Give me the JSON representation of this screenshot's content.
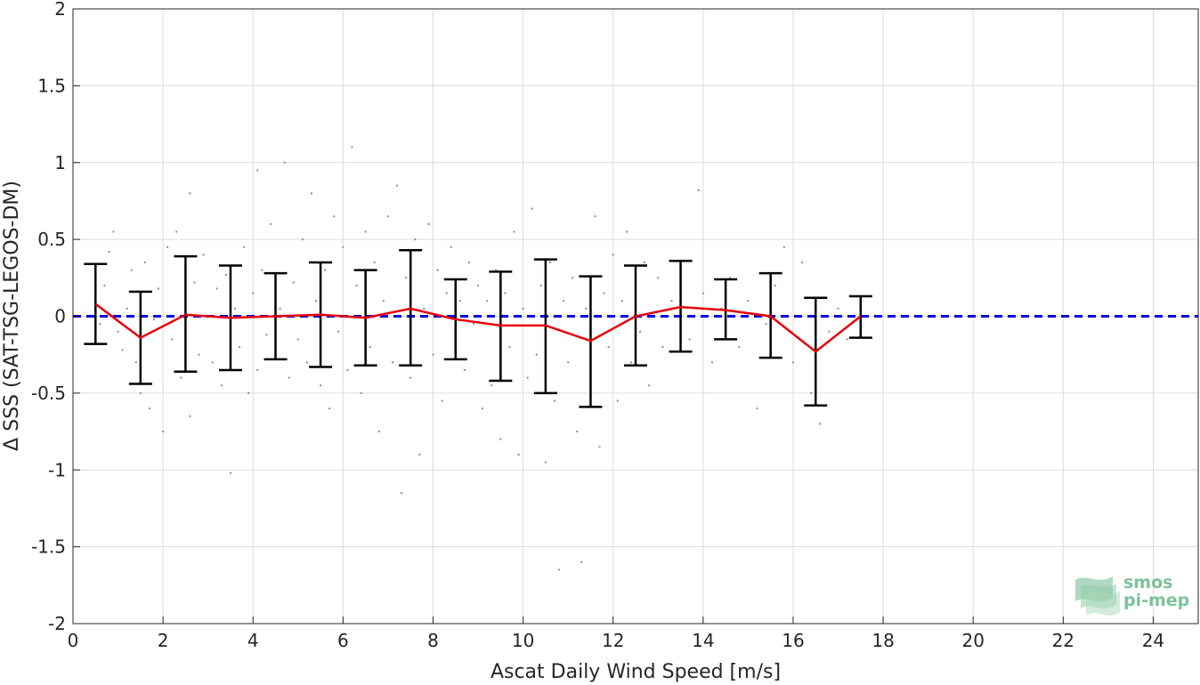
{
  "chart_data": {
    "type": "scatter",
    "title": "",
    "xlabel": "Ascat Daily Wind Speed [m/s]",
    "ylabel": "Δ SSS (SAT-TSG-LEGOS-DM)",
    "xlim": [
      0,
      25
    ],
    "ylim": [
      -2,
      2
    ],
    "xticks": [
      0,
      2,
      4,
      6,
      8,
      10,
      12,
      14,
      16,
      18,
      20,
      22,
      24
    ],
    "yticks": [
      -2,
      -1.5,
      -1,
      -0.5,
      0,
      0.5,
      1,
      1.5,
      2
    ],
    "grid": true,
    "reference_line": {
      "y": 0,
      "color": "#0000e0",
      "style": "dashed"
    },
    "binned_mean": {
      "color": "#e8000b",
      "x": [
        0.5,
        1.5,
        2.5,
        3.5,
        4.5,
        5.5,
        6.5,
        7.5,
        8.5,
        9.5,
        10.5,
        11.5,
        12.5,
        13.5,
        14.5,
        15.5,
        16.5,
        17.5
      ],
      "y": [
        0.08,
        -0.14,
        0.01,
        -0.01,
        0.0,
        0.01,
        -0.01,
        0.05,
        -0.02,
        -0.06,
        -0.06,
        -0.16,
        0.0,
        0.06,
        0.04,
        0.0,
        -0.23,
        0.0
      ]
    },
    "error_bars": {
      "color": "#000000",
      "x": [
        0.5,
        1.5,
        2.5,
        3.5,
        4.5,
        5.5,
        6.5,
        7.5,
        8.5,
        9.5,
        10.5,
        11.5,
        12.5,
        13.5,
        14.5,
        15.5,
        16.5,
        17.5
      ],
      "low": [
        -0.18,
        -0.44,
        -0.36,
        -0.35,
        -0.28,
        -0.33,
        -0.32,
        -0.32,
        -0.28,
        -0.42,
        -0.5,
        -0.59,
        -0.32,
        -0.23,
        -0.15,
        -0.27,
        -0.58,
        -0.14
      ],
      "high": [
        0.34,
        0.16,
        0.39,
        0.33,
        0.28,
        0.35,
        0.3,
        0.43,
        0.24,
        0.29,
        0.37,
        0.26,
        0.33,
        0.36,
        0.24,
        0.28,
        0.12,
        0.13
      ]
    },
    "scatter_color": "#8c8c8c",
    "scatter_points": [
      [
        0.5,
        0.12
      ],
      [
        0.6,
        -0.05
      ],
      [
        0.7,
        0.2
      ],
      [
        0.8,
        0.42
      ],
      [
        0.9,
        0.55
      ],
      [
        1.0,
        -0.1
      ],
      [
        1.1,
        -0.22
      ],
      [
        1.2,
        0.05
      ],
      [
        1.3,
        0.3
      ],
      [
        1.4,
        -0.3
      ],
      [
        1.5,
        -0.5
      ],
      [
        1.6,
        0.35
      ],
      [
        1.7,
        -0.6
      ],
      [
        1.8,
        -0.02
      ],
      [
        1.9,
        0.18
      ],
      [
        2.0,
        -0.75
      ],
      [
        2.1,
        0.45
      ],
      [
        2.2,
        -0.15
      ],
      [
        2.3,
        0.55
      ],
      [
        2.4,
        -0.4
      ],
      [
        2.5,
        0.1
      ],
      [
        2.6,
        -0.65
      ],
      [
        2.6,
        0.8
      ],
      [
        2.7,
        0.22
      ],
      [
        2.8,
        -0.25
      ],
      [
        2.9,
        0.4
      ],
      [
        3.0,
        0.0
      ],
      [
        3.1,
        -0.3
      ],
      [
        3.2,
        0.18
      ],
      [
        3.3,
        -0.45
      ],
      [
        3.4,
        0.27
      ],
      [
        3.5,
        -1.02
      ],
      [
        3.6,
        0.05
      ],
      [
        3.7,
        -0.2
      ],
      [
        3.8,
        0.45
      ],
      [
        3.9,
        -0.5
      ],
      [
        4.0,
        0.15
      ],
      [
        4.1,
        0.95
      ],
      [
        4.1,
        -0.35
      ],
      [
        4.2,
        0.3
      ],
      [
        4.3,
        -0.12
      ],
      [
        4.4,
        0.6
      ],
      [
        4.5,
        -0.25
      ],
      [
        4.6,
        0.05
      ],
      [
        4.7,
        1.0
      ],
      [
        4.8,
        -0.4
      ],
      [
        4.9,
        0.22
      ],
      [
        5.0,
        -0.15
      ],
      [
        5.1,
        0.5
      ],
      [
        5.2,
        -0.3
      ],
      [
        5.3,
        0.8
      ],
      [
        5.4,
        0.1
      ],
      [
        5.5,
        -0.45
      ],
      [
        5.6,
        0.3
      ],
      [
        5.7,
        -0.6
      ],
      [
        5.8,
        0.65
      ],
      [
        5.9,
        -0.1
      ],
      [
        6.0,
        0.45
      ],
      [
        6.1,
        -0.35
      ],
      [
        6.2,
        1.1
      ],
      [
        6.3,
        0.2
      ],
      [
        6.4,
        -0.5
      ],
      [
        6.5,
        0.55
      ],
      [
        6.6,
        -0.2
      ],
      [
        6.7,
        0.35
      ],
      [
        6.8,
        -0.75
      ],
      [
        6.9,
        0.1
      ],
      [
        7.0,
        0.65
      ],
      [
        7.1,
        -0.3
      ],
      [
        7.2,
        0.85
      ],
      [
        7.3,
        -1.15
      ],
      [
        7.4,
        0.25
      ],
      [
        7.5,
        -0.4
      ],
      [
        7.6,
        0.5
      ],
      [
        7.7,
        -0.9
      ],
      [
        7.8,
        0.05
      ],
      [
        7.9,
        0.6
      ],
      [
        8.0,
        -0.25
      ],
      [
        8.1,
        0.3
      ],
      [
        8.2,
        -0.55
      ],
      [
        8.3,
        0.15
      ],
      [
        8.4,
        0.45
      ],
      [
        8.5,
        -0.15
      ],
      [
        8.6,
        0.1
      ],
      [
        8.7,
        -0.35
      ],
      [
        8.8,
        0.35
      ],
      [
        8.9,
        -0.05
      ],
      [
        9.0,
        0.2
      ],
      [
        9.1,
        -0.6
      ],
      [
        9.2,
        0.1
      ],
      [
        9.3,
        -0.45
      ],
      [
        9.4,
        0.3
      ],
      [
        9.5,
        -0.8
      ],
      [
        9.6,
        0.15
      ],
      [
        9.7,
        -0.2
      ],
      [
        9.8,
        0.55
      ],
      [
        9.9,
        -0.9
      ],
      [
        10.0,
        0.05
      ],
      [
        10.1,
        -0.4
      ],
      [
        10.2,
        0.7
      ],
      [
        10.3,
        -0.25
      ],
      [
        10.4,
        0.2
      ],
      [
        10.5,
        -0.95
      ],
      [
        10.6,
        0.35
      ],
      [
        10.7,
        -0.55
      ],
      [
        10.8,
        -1.65
      ],
      [
        10.9,
        0.1
      ],
      [
        11.0,
        -0.3
      ],
      [
        11.1,
        0.25
      ],
      [
        11.2,
        -0.75
      ],
      [
        11.3,
        -1.6
      ],
      [
        11.4,
        0.05
      ],
      [
        11.5,
        -0.45
      ],
      [
        11.6,
        0.65
      ],
      [
        11.7,
        -0.85
      ],
      [
        11.8,
        0.15
      ],
      [
        11.9,
        -0.2
      ],
      [
        12.0,
        0.4
      ],
      [
        12.1,
        -0.55
      ],
      [
        12.2,
        0.1
      ],
      [
        12.3,
        0.55
      ],
      [
        12.4,
        -0.3
      ],
      [
        12.5,
        0.2
      ],
      [
        12.6,
        -0.1
      ],
      [
        12.7,
        0.35
      ],
      [
        12.8,
        -0.45
      ],
      [
        12.9,
        0.0
      ],
      [
        13.0,
        0.25
      ],
      [
        13.1,
        -0.2
      ],
      [
        13.3,
        0.1
      ],
      [
        13.5,
        0.3
      ],
      [
        13.7,
        -0.15
      ],
      [
        13.9,
        0.82
      ],
      [
        14.0,
        0.15
      ],
      [
        14.2,
        -0.3
      ],
      [
        14.4,
        0.05
      ],
      [
        14.6,
        0.25
      ],
      [
        14.8,
        -0.2
      ],
      [
        15.0,
        0.1
      ],
      [
        15.2,
        -0.6
      ],
      [
        15.4,
        -0.05
      ],
      [
        15.6,
        0.2
      ],
      [
        15.8,
        0.45
      ],
      [
        16.0,
        -0.3
      ],
      [
        16.2,
        0.35
      ],
      [
        16.4,
        -0.5
      ],
      [
        16.6,
        -0.7
      ],
      [
        16.8,
        -0.1
      ],
      [
        17.0,
        0.05
      ],
      [
        17.2,
        -0.15
      ]
    ]
  },
  "logo": {
    "line1": "smos",
    "line2": "pi-mep"
  }
}
